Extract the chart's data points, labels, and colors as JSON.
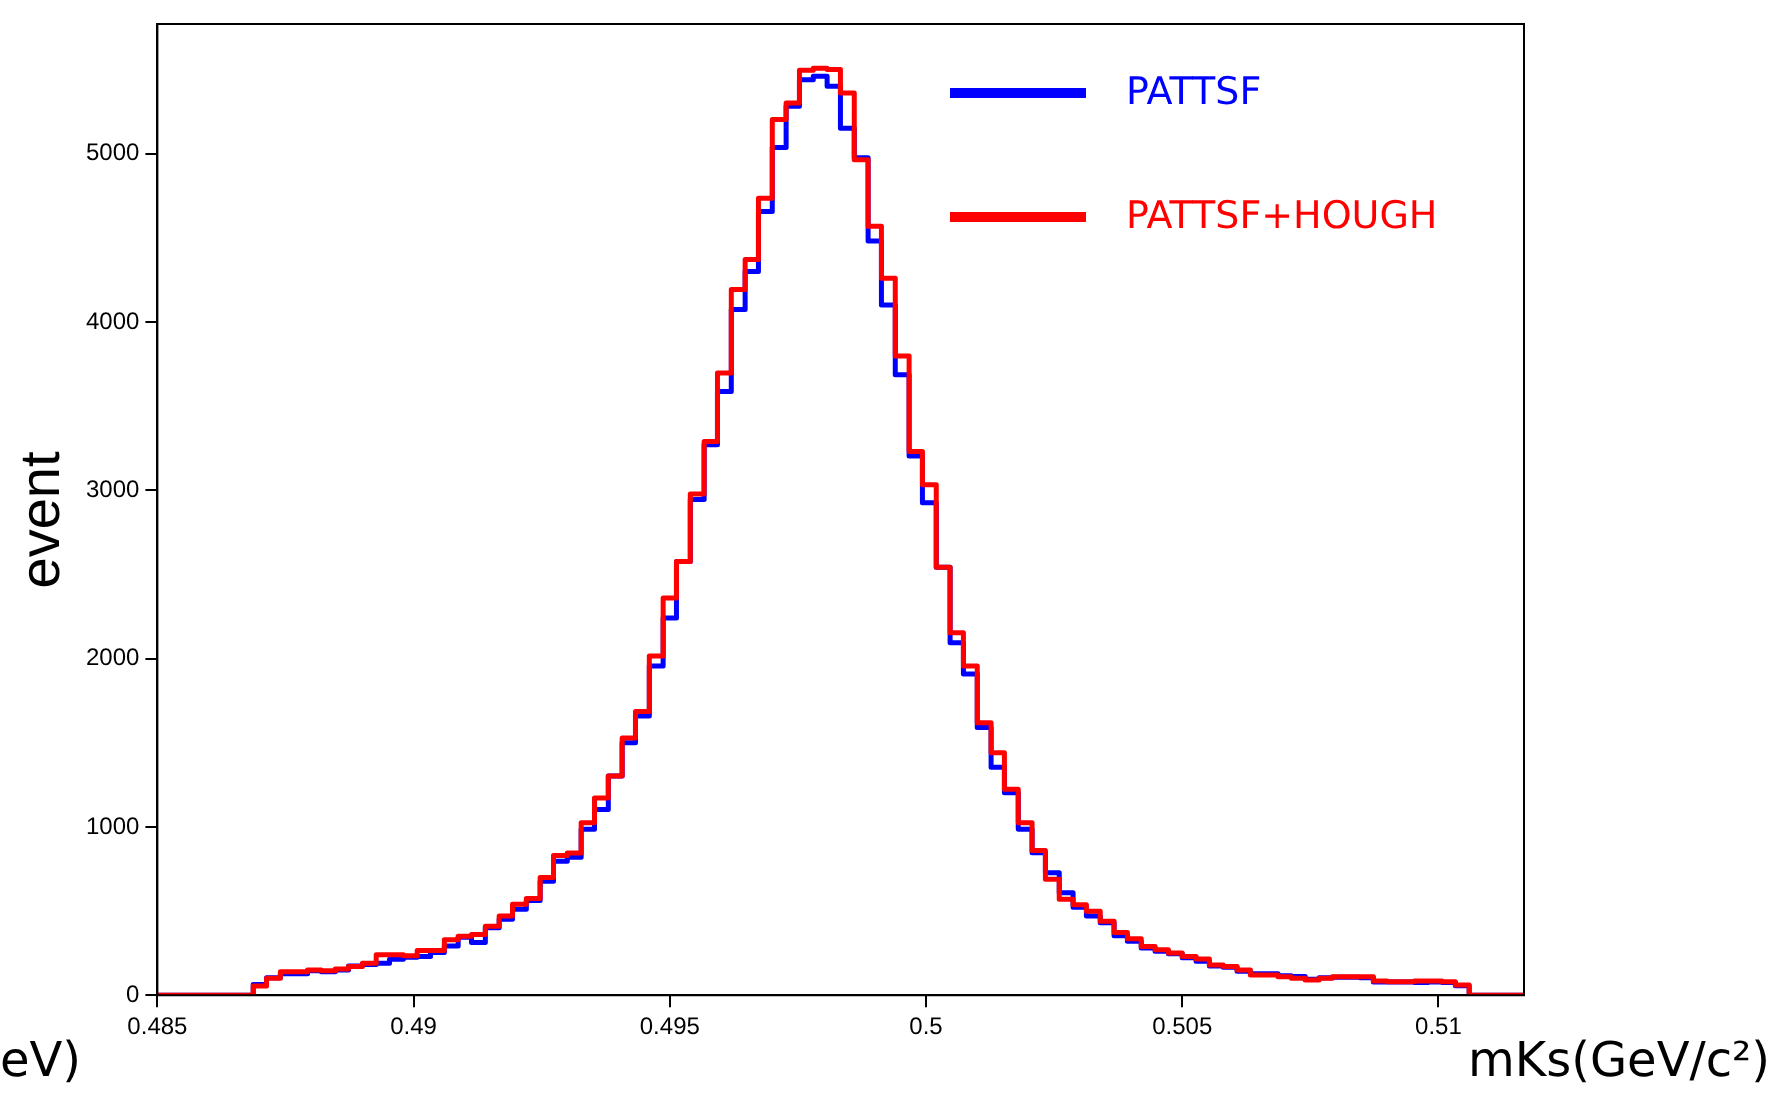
{
  "chart_data": {
    "type": "histogram",
    "xlabel": "mKs(GeV/c²)",
    "ylabel": "event",
    "annotations": [
      "eV)"
    ],
    "bins": [
      0.485,
      0.48527,
      0.48553,
      0.4858,
      0.48607,
      0.48633,
      0.4866,
      0.48687,
      0.48713,
      0.4874,
      0.48767,
      0.48793,
      0.4882,
      0.48847,
      0.48873,
      0.489,
      0.48927,
      0.48953,
      0.4898,
      0.49007,
      0.49033,
      0.4906,
      0.49087,
      0.49113,
      0.4914,
      0.49167,
      0.49193,
      0.4922,
      0.49247,
      0.49273,
      0.493,
      0.49327,
      0.49353,
      0.4938,
      0.49407,
      0.49433,
      0.4946,
      0.49487,
      0.49513,
      0.4954,
      0.49567,
      0.49593,
      0.4962,
      0.49647,
      0.49673,
      0.497,
      0.49727,
      0.49753,
      0.4978,
      0.49807,
      0.49833,
      0.4986,
      0.49887,
      0.49913,
      0.4994,
      0.49967,
      0.49993,
      0.5002,
      0.50047,
      0.50073,
      0.501,
      0.50127,
      0.50153,
      0.5018,
      0.50207,
      0.50233,
      0.5026,
      0.50287,
      0.50313,
      0.5034,
      0.50367,
      0.50393,
      0.5042,
      0.50447,
      0.50473,
      0.505,
      0.50527,
      0.50553,
      0.5058,
      0.50607,
      0.50633,
      0.5066,
      0.50687,
      0.50713,
      0.5074,
      0.50767,
      0.50793,
      0.5082,
      0.50847,
      0.50873,
      0.509,
      0.50927,
      0.50953,
      0.5098,
      0.51007,
      0.51033,
      0.5106,
      0.51087,
      0.51113,
      0.5114,
      0.51167
    ],
    "series": [
      {
        "name": "PATTSF",
        "color": "#0000ff",
        "values": [
          0,
          0,
          0,
          0,
          0,
          0,
          0,
          63,
          103,
          127,
          127,
          146,
          139,
          150,
          174,
          182,
          190,
          214,
          226,
          230,
          253,
          293,
          344,
          313,
          400,
          451,
          511,
          562,
          677,
          796,
          820,
          986,
          1104,
          1303,
          1500,
          1659,
          1956,
          2241,
          2577,
          2945,
          3270,
          3587,
          4074,
          4299,
          4656,
          5036,
          5281,
          5439,
          5459,
          5400,
          5151,
          4976,
          4481,
          4101,
          3686,
          3203,
          2925,
          2542,
          2094,
          1908,
          1591,
          1354,
          1203,
          986,
          847,
          728,
          609,
          523,
          471,
          431,
          353,
          320,
          280,
          261,
          246,
          222,
          202,
          174,
          166,
          143,
          127,
          127,
          115,
          111,
          95,
          103,
          107,
          107,
          103,
          79,
          79,
          79,
          75,
          79,
          75,
          56,
          0,
          0,
          0,
          0
        ]
      },
      {
        "name": "PATTSF+HOUGH",
        "color": "#ff0000",
        "values": [
          0,
          0,
          0,
          0,
          0,
          0,
          0,
          55,
          100,
          140,
          140,
          150,
          145,
          155,
          170,
          190,
          240,
          240,
          235,
          265,
          265,
          330,
          350,
          360,
          410,
          470,
          540,
          575,
          700,
          830,
          845,
          1025,
          1172,
          1303,
          1528,
          1686,
          2015,
          2360,
          2577,
          2977,
          3290,
          3697,
          4192,
          4371,
          4735,
          5202,
          5300,
          5495,
          5507,
          5499,
          5360,
          4964,
          4569,
          4260,
          3797,
          3230,
          3032,
          2542,
          2153,
          1956,
          1619,
          1441,
          1223,
          1025,
          860,
          689,
          570,
          538,
          499,
          440,
          372,
          335,
          290,
          270,
          250,
          230,
          215,
          180,
          170,
          150,
          120,
          120,
          110,
          100,
          90,
          100,
          110,
          110,
          110,
          85,
          80,
          80,
          85,
          85,
          80,
          60,
          0,
          0,
          0,
          0
        ]
      }
    ],
    "xlim": [
      0.485,
      0.51167
    ],
    "xticks": [
      0.485,
      0.49,
      0.495,
      0.5,
      0.505,
      0.51
    ],
    "ylim": [
      0,
      5770
    ],
    "yticks": [
      0,
      1000,
      2000,
      3000,
      4000,
      5000
    ],
    "grid": false,
    "legend": "top right"
  }
}
